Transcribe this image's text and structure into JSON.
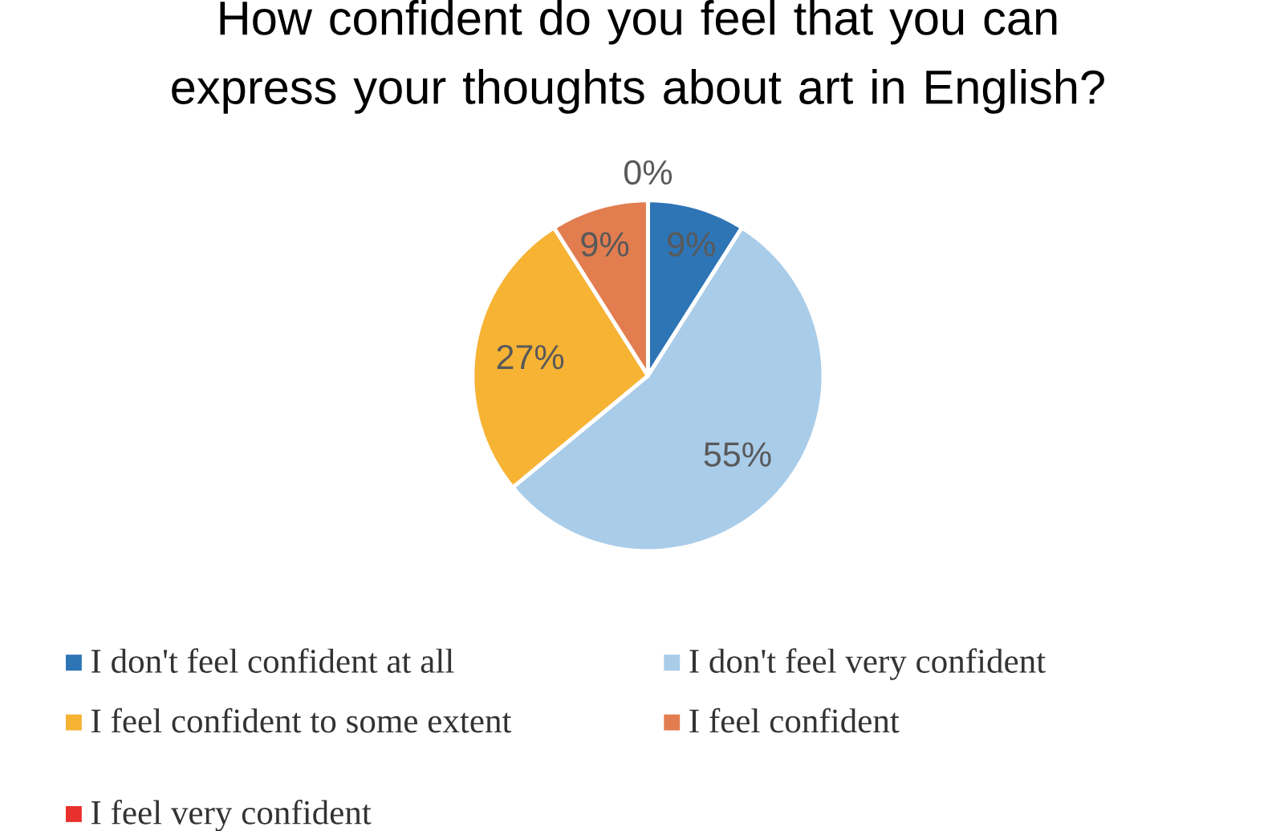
{
  "chart_data": {
    "type": "pie",
    "title": "How confident do you feel that you can express your thoughts about art in English?",
    "categories": [
      "I don't feel confident at all",
      "I don't feel very confident",
      "I feel confident to some extent",
      "I feel confident",
      "I feel very confident"
    ],
    "values": [
      9,
      55,
      27,
      9,
      0
    ],
    "value_labels": [
      "9%",
      "55%",
      "27%",
      "9%",
      "0%"
    ],
    "colors": [
      "#2e75b6",
      "#a9cce9",
      "#f6b334",
      "#e27d50",
      "#e8302c"
    ],
    "legend": "bottom"
  }
}
